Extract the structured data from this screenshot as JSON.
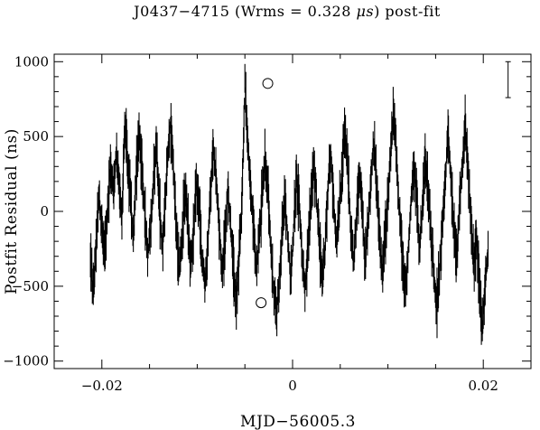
{
  "chart_data": {
    "type": "scatter",
    "title_prefix": "J0437−4715 (Wrms = 0.328 ",
    "title_unit": "μs",
    "title_suffix": ") post-fit",
    "xlabel": "MJD−56005.3",
    "ylabel": "Postfit Residual (ns)",
    "xlim": [
      -0.025,
      0.025
    ],
    "ylim": [
      -1050,
      1050
    ],
    "xticks": [
      -0.02,
      0,
      0.02
    ],
    "xtick_labels": [
      "−0.02",
      "0",
      "0.02"
    ],
    "yticks": [
      -1000,
      -500,
      0,
      500,
      1000
    ],
    "ytick_labels": [
      "−1000",
      "−500",
      "0",
      "500",
      "1000"
    ],
    "x_range_data": [
      -0.0212,
      0.0205
    ],
    "grid": false,
    "marker_color": "#000000",
    "series": [
      {
        "x": [
          -0.0212,
          -0.0209,
          -0.0206,
          -0.0203,
          -0.02,
          -0.0197,
          -0.0194,
          -0.0191,
          -0.0188,
          -0.0185,
          -0.0182,
          -0.0179,
          -0.0176,
          -0.0173,
          -0.017,
          -0.0167,
          -0.0164,
          -0.0161,
          -0.0158,
          -0.0155,
          -0.0152,
          -0.0149,
          -0.0146,
          -0.0143,
          -0.014,
          -0.0137,
          -0.0134,
          -0.0131,
          -0.0128,
          -0.0125,
          -0.0122,
          -0.0119,
          -0.0116,
          -0.0113,
          -0.011,
          -0.0107,
          -0.0104,
          -0.0101,
          -0.0098,
          -0.0095,
          -0.0092,
          -0.0089,
          -0.0086,
          -0.0083,
          -0.008,
          -0.0077,
          -0.0074,
          -0.0071,
          -0.0068,
          -0.0065,
          -0.0062,
          -0.0059,
          -0.0056,
          -0.0053,
          -0.005,
          -0.0047,
          -0.0044,
          -0.0041,
          -0.0038,
          -0.0035,
          -0.0032,
          -0.0029,
          -0.0026,
          -0.0023,
          -0.002,
          -0.0017,
          -0.0014,
          -0.0011,
          -0.0008,
          -0.0005,
          -0.0002,
          0.0001,
          0.0004,
          0.0007,
          0.001,
          0.0013,
          0.0016,
          0.0019,
          0.0022,
          0.0025,
          0.0028,
          0.0031,
          0.0034,
          0.0037,
          0.004,
          0.0043,
          0.0046,
          0.0049,
          0.0052,
          0.0055,
          0.0058,
          0.0061,
          0.0064,
          0.0067,
          0.007,
          0.0073,
          0.0076,
          0.0079,
          0.0082,
          0.0085,
          0.0088,
          0.0091,
          0.0094,
          0.0097,
          0.01,
          0.0103,
          0.0106,
          0.0109,
          0.0112,
          0.0115,
          0.0118,
          0.0121,
          0.0124,
          0.0127,
          0.013,
          0.0133,
          0.0136,
          0.0139,
          0.0142,
          0.0145,
          0.0148,
          0.0151,
          0.0154,
          0.0157,
          0.016,
          0.0163,
          0.0166,
          0.0169,
          0.0172,
          0.0175,
          0.0178,
          0.0181,
          0.0184,
          0.0187,
          0.019,
          0.0193,
          0.0196,
          0.0199,
          0.0202,
          0.0205
        ],
        "y": [
          -300,
          -550,
          -200,
          100,
          -100,
          -300,
          0,
          300,
          150,
          400,
          200,
          -50,
          600,
          350,
          100,
          -200,
          250,
          500,
          300,
          0,
          -300,
          -150,
          200,
          450,
          100,
          -250,
          0,
          350,
          600,
          300,
          -100,
          -400,
          -200,
          150,
          -50,
          -350,
          -150,
          200,
          50,
          -300,
          -500,
          -250,
          100,
          450,
          200,
          -100,
          -400,
          -200,
          150,
          -100,
          -400,
          -600,
          -300,
          100,
          850,
          450,
          150,
          -100,
          -400,
          -200,
          100,
          350,
          150,
          -250,
          -500,
          -700,
          -450,
          -150,
          100,
          -200,
          -450,
          -150,
          250,
          50,
          -300,
          -550,
          -250,
          50,
          300,
          100,
          -200,
          -450,
          -250,
          150,
          400,
          100,
          -250,
          0,
          300,
          550,
          250,
          -100,
          -350,
          -50,
          250,
          0,
          -300,
          -100,
          200,
          450,
          200,
          -150,
          -400,
          -200,
          100,
          400,
          650,
          350,
          0,
          -300,
          -550,
          -300,
          50,
          300,
          100,
          -250,
          0,
          350,
          150,
          -150,
          -400,
          -650,
          -400,
          -100,
          200,
          500,
          250,
          -100,
          -300,
          0,
          300,
          550,
          300,
          -50,
          -350,
          -150,
          -550,
          -800,
          -500,
          -250
        ]
      }
    ],
    "highlighted_points": [
      {
        "x": -0.0026,
        "y": 855
      },
      {
        "x": -0.0033,
        "y": -610
      }
    ],
    "error_bar": {
      "x": 0.0226,
      "y": 880,
      "half_height": 120
    }
  }
}
